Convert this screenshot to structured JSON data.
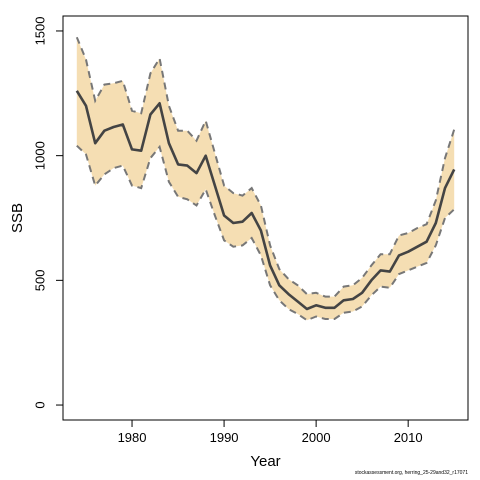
{
  "chart_data": {
    "type": "area",
    "xlabel": "Year",
    "ylabel": "SSB",
    "xlim": [
      1972.5,
      2016.5
    ],
    "ylim": [
      -60,
      1560
    ],
    "xticks": [
      1980,
      1990,
      2000,
      2010
    ],
    "yticks": [
      0,
      500,
      1000,
      1500
    ],
    "grid": false,
    "x": [
      1974,
      1975,
      1976,
      1977,
      1978,
      1979,
      1980,
      1981,
      1982,
      1983,
      1984,
      1985,
      1986,
      1987,
      1988,
      1989,
      1990,
      1991,
      1992,
      1993,
      1994,
      1995,
      1996,
      1997,
      1998,
      1999,
      2000,
      2001,
      2002,
      2003,
      2004,
      2005,
      2006,
      2007,
      2008,
      2009,
      2010,
      2011,
      2012,
      2013,
      2014,
      2015
    ],
    "series": [
      {
        "role": "estimate",
        "color": "#444444",
        "values": [
          1260,
          1200,
          1050,
          1100,
          1115,
          1125,
          1025,
          1020,
          1165,
          1210,
          1050,
          965,
          960,
          930,
          1000,
          880,
          760,
          730,
          735,
          770,
          700,
          560,
          480,
          445,
          415,
          385,
          400,
          390,
          390,
          420,
          425,
          450,
          500,
          540,
          535,
          600,
          615,
          635,
          655,
          730,
          870,
          945
        ]
      },
      {
        "role": "upper",
        "color": "#777777",
        "values": [
          1475,
          1385,
          1220,
          1285,
          1290,
          1300,
          1180,
          1170,
          1330,
          1390,
          1200,
          1100,
          1100,
          1060,
          1140,
          1010,
          880,
          850,
          840,
          870,
          800,
          640,
          545,
          505,
          480,
          445,
          450,
          435,
          435,
          475,
          480,
          510,
          560,
          605,
          605,
          680,
          690,
          710,
          725,
          820,
          990,
          1105
        ]
      },
      {
        "role": "lower",
        "color": "#777777",
        "values": [
          1040,
          1005,
          880,
          925,
          950,
          960,
          880,
          870,
          990,
          1035,
          895,
          835,
          825,
          800,
          865,
          760,
          660,
          635,
          640,
          670,
          600,
          480,
          420,
          385,
          365,
          340,
          355,
          345,
          345,
          370,
          375,
          395,
          440,
          475,
          470,
          525,
          540,
          555,
          570,
          640,
          750,
          785
        ]
      }
    ],
    "band_fill": "#f5deb3",
    "band_edge_color": "#777777",
    "line_color": "#444444"
  },
  "footer": {
    "credit": "stockassessment.org, herring_25-29and32_r17071"
  }
}
